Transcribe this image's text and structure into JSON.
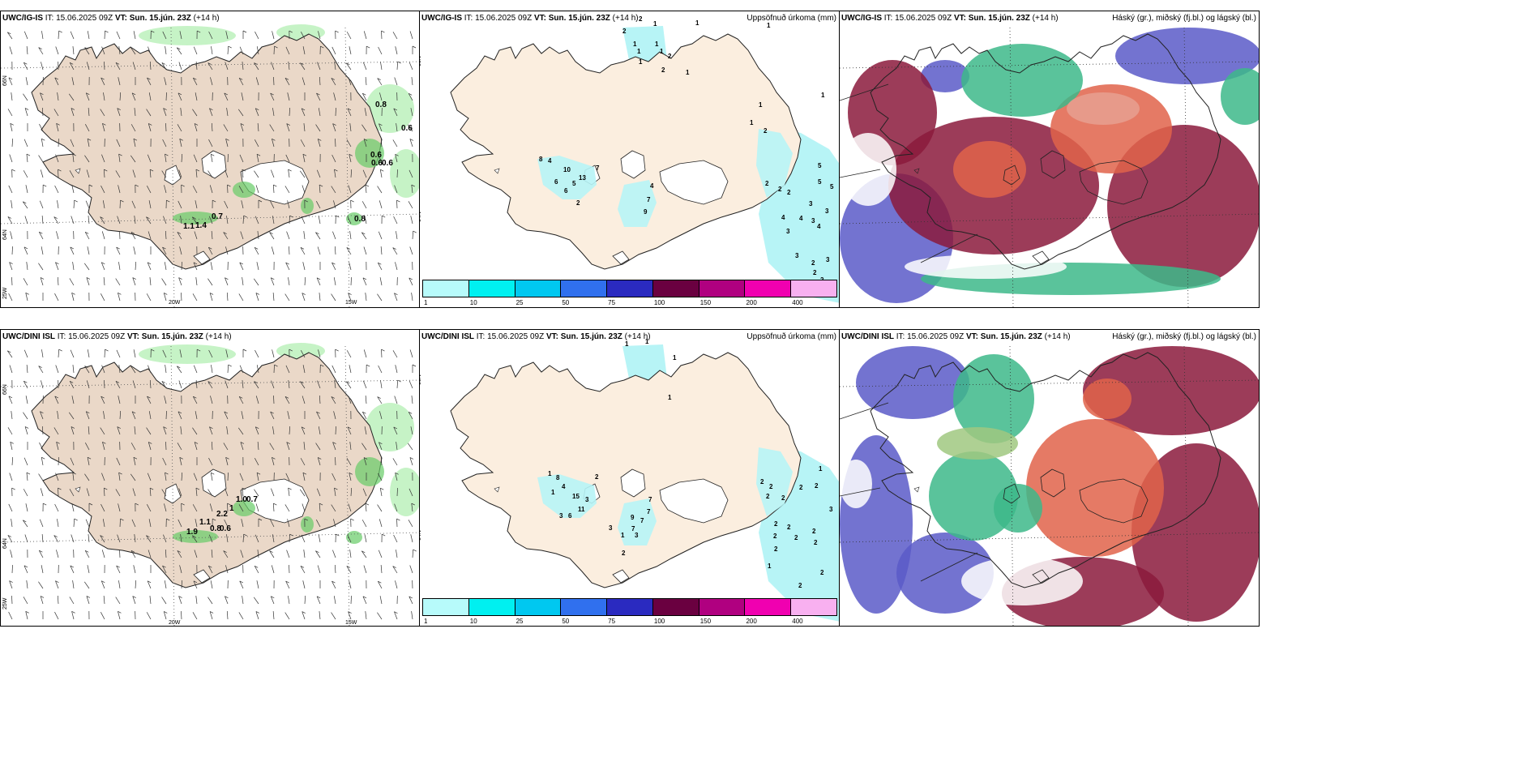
{
  "panels": {
    "top_left": {
      "model": "UWC/IG-IS",
      "it": "IT: 15.06.2025 09Z",
      "vt_label": "VT:",
      "vt": "Sun. 15.jún. 23Z",
      "lead": "(+14 h)"
    },
    "top_mid": {
      "model": "UWC/IG-IS",
      "it": "IT: 15.06.2025 09Z",
      "vt_label": "VT:",
      "vt": "Sun. 15.jún. 23Z",
      "lead": "(+14 h)",
      "title": "Uppsöfnuð úrkoma (mm)"
    },
    "top_right": {
      "model": "UWC/IG-IS",
      "it": "IT: 15.06.2025 09Z",
      "vt_label": "VT:",
      "vt": "Sun. 15.jún. 23Z",
      "lead": "(+14 h)",
      "title": "Háský (gr.), miðský (fj.bl.) og lágský (bl.)"
    },
    "bot_left": {
      "model": "UWC/DINI ISL",
      "it": "IT: 15.06.2025 09Z",
      "vt_label": "VT:",
      "vt": "Sun. 15.jún. 23Z",
      "lead": "(+14 h)"
    },
    "bot_mid": {
      "model": "UWC/DINI ISL",
      "it": "IT: 15.06.2025 09Z",
      "vt_label": "VT:",
      "vt": "Sun. 15.jún. 23Z",
      "lead": "(+14 h)",
      "title": "Uppsöfnuð úrkoma (mm)"
    },
    "bot_right": {
      "model": "UWC/DINI ISL",
      "it": "IT: 15.06.2025 09Z",
      "vt_label": "VT:",
      "vt": "Sun. 15.jún. 23Z",
      "lead": "(+14 h)",
      "title": "Háský (gr.), miðský (fj.bl.) og lágský (bl.)"
    }
  },
  "axis_labels": {
    "lat66": "66N",
    "lat64": "64N",
    "lon25": "25W",
    "lon20": "20W",
    "lon15": "15W"
  },
  "colorbar": {
    "labels": [
      "1",
      "10",
      "25",
      "50",
      "75",
      "100",
      "150",
      "200",
      "400"
    ],
    "colors": [
      "#b7fbfb",
      "#00f0f0",
      "#00c8f0",
      "#3070ee",
      "#2a2ac0",
      "#6a0040",
      "#b00080",
      "#f000b0",
      "#f8b0f0"
    ]
  },
  "top_precip_values": [
    {
      "t": "2",
      "x": 270,
      "y": 12
    },
    {
      "t": "1",
      "x": 288,
      "y": 18
    },
    {
      "t": "2",
      "x": 250,
      "y": 27
    },
    {
      "t": "1",
      "x": 340,
      "y": 17
    },
    {
      "t": "1",
      "x": 428,
      "y": 20
    },
    {
      "t": "1",
      "x": 263,
      "y": 43
    },
    {
      "t": "1",
      "x": 290,
      "y": 43
    },
    {
      "t": "1",
      "x": 268,
      "y": 52
    },
    {
      "t": "1",
      "x": 296,
      "y": 52
    },
    {
      "t": "2",
      "x": 306,
      "y": 58
    },
    {
      "t": "1",
      "x": 270,
      "y": 65
    },
    {
      "t": "2",
      "x": 298,
      "y": 75
    },
    {
      "t": "1",
      "x": 328,
      "y": 78
    },
    {
      "t": "1",
      "x": 418,
      "y": 118
    },
    {
      "t": "1",
      "x": 407,
      "y": 140
    },
    {
      "t": "2",
      "x": 424,
      "y": 150
    },
    {
      "t": "1",
      "x": 495,
      "y": 106
    },
    {
      "t": "8",
      "x": 147,
      "y": 185
    },
    {
      "t": "4",
      "x": 158,
      "y": 187
    },
    {
      "t": "10",
      "x": 177,
      "y": 198
    },
    {
      "t": "7",
      "x": 217,
      "y": 196
    },
    {
      "t": "13",
      "x": 196,
      "y": 208
    },
    {
      "t": "6",
      "x": 166,
      "y": 213
    },
    {
      "t": "5",
      "x": 188,
      "y": 215
    },
    {
      "t": "6",
      "x": 178,
      "y": 224
    },
    {
      "t": "2",
      "x": 193,
      "y": 239
    },
    {
      "t": "4",
      "x": 284,
      "y": 218
    },
    {
      "t": "7",
      "x": 280,
      "y": 235
    },
    {
      "t": "9",
      "x": 276,
      "y": 250
    },
    {
      "t": "2",
      "x": 426,
      "y": 215
    },
    {
      "t": "2",
      "x": 442,
      "y": 222
    },
    {
      "t": "2",
      "x": 453,
      "y": 226
    },
    {
      "t": "5",
      "x": 491,
      "y": 193
    },
    {
      "t": "5",
      "x": 491,
      "y": 213
    },
    {
      "t": "5",
      "x": 506,
      "y": 219
    },
    {
      "t": "3",
      "x": 480,
      "y": 240
    },
    {
      "t": "3",
      "x": 500,
      "y": 249
    },
    {
      "t": "4",
      "x": 446,
      "y": 257
    },
    {
      "t": "4",
      "x": 468,
      "y": 258
    },
    {
      "t": "3",
      "x": 483,
      "y": 261
    },
    {
      "t": "4",
      "x": 490,
      "y": 268
    },
    {
      "t": "3",
      "x": 452,
      "y": 274
    },
    {
      "t": "3",
      "x": 463,
      "y": 304
    },
    {
      "t": "2",
      "x": 483,
      "y": 313
    },
    {
      "t": "3",
      "x": 501,
      "y": 309
    },
    {
      "t": "2",
      "x": 485,
      "y": 325
    },
    {
      "t": "2",
      "x": 494,
      "y": 334
    }
  ],
  "bot_precip_values": [
    {
      "t": "1",
      "x": 253,
      "y": 20
    },
    {
      "t": "1",
      "x": 278,
      "y": 17
    },
    {
      "t": "1",
      "x": 312,
      "y": 37
    },
    {
      "t": "1",
      "x": 306,
      "y": 86
    },
    {
      "t": "1",
      "x": 158,
      "y": 180
    },
    {
      "t": "8",
      "x": 168,
      "y": 185
    },
    {
      "t": "4",
      "x": 175,
      "y": 196
    },
    {
      "t": "2",
      "x": 216,
      "y": 184
    },
    {
      "t": "1",
      "x": 162,
      "y": 203
    },
    {
      "t": "15",
      "x": 188,
      "y": 208
    },
    {
      "t": "3",
      "x": 204,
      "y": 212
    },
    {
      "t": "7",
      "x": 282,
      "y": 212
    },
    {
      "t": "11",
      "x": 195,
      "y": 224
    },
    {
      "t": "7",
      "x": 280,
      "y": 227
    },
    {
      "t": "3",
      "x": 172,
      "y": 232
    },
    {
      "t": "6",
      "x": 183,
      "y": 232
    },
    {
      "t": "9",
      "x": 260,
      "y": 234
    },
    {
      "t": "7",
      "x": 272,
      "y": 238
    },
    {
      "t": "7",
      "x": 261,
      "y": 248
    },
    {
      "t": "3",
      "x": 233,
      "y": 247
    },
    {
      "t": "1",
      "x": 248,
      "y": 256
    },
    {
      "t": "3",
      "x": 265,
      "y": 256
    },
    {
      "t": "2",
      "x": 249,
      "y": 278
    },
    {
      "t": "2",
      "x": 420,
      "y": 190
    },
    {
      "t": "2",
      "x": 431,
      "y": 196
    },
    {
      "t": "2",
      "x": 468,
      "y": 197
    },
    {
      "t": "2",
      "x": 487,
      "y": 195
    },
    {
      "t": "1",
      "x": 492,
      "y": 174
    },
    {
      "t": "3",
      "x": 505,
      "y": 224
    },
    {
      "t": "2",
      "x": 427,
      "y": 208
    },
    {
      "t": "2",
      "x": 446,
      "y": 210
    },
    {
      "t": "2",
      "x": 437,
      "y": 242
    },
    {
      "t": "2",
      "x": 453,
      "y": 246
    },
    {
      "t": "2",
      "x": 484,
      "y": 251
    },
    {
      "t": "2",
      "x": 436,
      "y": 257
    },
    {
      "t": "2",
      "x": 462,
      "y": 259
    },
    {
      "t": "2",
      "x": 486,
      "y": 265
    },
    {
      "t": "2",
      "x": 437,
      "y": 273
    },
    {
      "t": "1",
      "x": 429,
      "y": 294
    },
    {
      "t": "2",
      "x": 494,
      "y": 302
    },
    {
      "t": "2",
      "x": 467,
      "y": 318
    }
  ],
  "top_wind_values": [
    {
      "t": "0.8",
      "x": 462,
      "y": 118
    },
    {
      "t": "0.6",
      "x": 494,
      "y": 147
    },
    {
      "t": "0.6",
      "x": 456,
      "y": 180
    },
    {
      "t": "0.6",
      "x": 457,
      "y": 190
    },
    {
      "t": "0.6",
      "x": 470,
      "y": 190
    },
    {
      "t": "0.7",
      "x": 260,
      "y": 256
    },
    {
      "t": "1.1",
      "x": 225,
      "y": 268
    },
    {
      "t": "1.4",
      "x": 240,
      "y": 267
    },
    {
      "t": "0.8",
      "x": 436,
      "y": 259
    }
  ],
  "bot_wind_values": [
    {
      "t": "1.0",
      "x": 290,
      "y": 212
    },
    {
      "t": "0.7",
      "x": 303,
      "y": 212
    },
    {
      "t": "1",
      "x": 282,
      "y": 223
    },
    {
      "t": "2.2",
      "x": 266,
      "y": 230
    },
    {
      "t": "1.1",
      "x": 245,
      "y": 240
    },
    {
      "t": "1.9",
      "x": 229,
      "y": 252
    },
    {
      "t": "0.8",
      "x": 258,
      "y": 248
    },
    {
      "t": "0.6",
      "x": 270,
      "y": 248
    }
  ]
}
